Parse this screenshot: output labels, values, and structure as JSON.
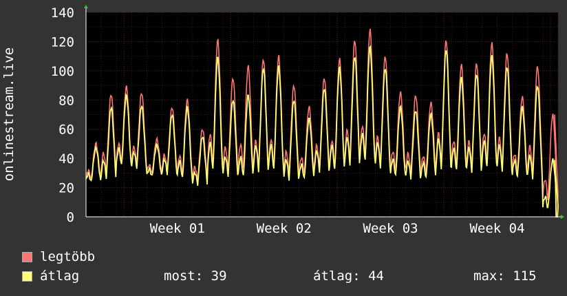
{
  "chart_data": {
    "type": "line",
    "ylabel": "onlinestream.live",
    "ylim": [
      0,
      140
    ],
    "yticks": [
      0,
      20,
      40,
      60,
      80,
      100,
      120,
      140
    ],
    "xticks": [
      "Week 01",
      "Week 02",
      "Week 03",
      "Week 04"
    ],
    "days": 31,
    "grid": true,
    "colors": {
      "background": "#333333",
      "plot": "#000000",
      "grid_major": "#5a2020",
      "grid_minor": "#3a1515"
    },
    "series": [
      {
        "name": "legtöbb",
        "color": "#ff7575",
        "daily_peaks": [
          50,
          84,
          89,
          85,
          53,
          75,
          80,
          60,
          121,
          95,
          103,
          108,
          110,
          90,
          75,
          95,
          108,
          121,
          128,
          110,
          85,
          83,
          78,
          121,
          104,
          105,
          119,
          112,
          82,
          103,
          70
        ],
        "daily_troughs": [
          22,
          22,
          29,
          28,
          26,
          25,
          21,
          20,
          22,
          22,
          21,
          22,
          22,
          20,
          22,
          24,
          22,
          26,
          27,
          25,
          23,
          22,
          22,
          23,
          24,
          23,
          24,
          23,
          22,
          19,
          2
        ]
      },
      {
        "name": "átlag",
        "color": "#ffff75",
        "daily_peaks": [
          47,
          75,
          83,
          76,
          49,
          70,
          75,
          55,
          109,
          80,
          83,
          102,
          103,
          80,
          67,
          88,
          102,
          110,
          116,
          102,
          75,
          73,
          70,
          115,
          95,
          98,
          110,
          103,
          75,
          90,
          39
        ],
        "daily_troughs": [
          20,
          19,
          27,
          27,
          24,
          23,
          18,
          17,
          19,
          20,
          18,
          20,
          20,
          17,
          19,
          22,
          20,
          24,
          25,
          23,
          20,
          19,
          19,
          20,
          21,
          20,
          21,
          20,
          19,
          16,
          0
        ]
      }
    ]
  },
  "legend": {
    "items": [
      {
        "label": "legtöbb",
        "color": "#ff7575"
      },
      {
        "label": "átlag",
        "color": "#ffff75"
      }
    ],
    "stats": {
      "most": "most: 39",
      "atlag": "átlag: 44",
      "max": "max: 115"
    }
  }
}
